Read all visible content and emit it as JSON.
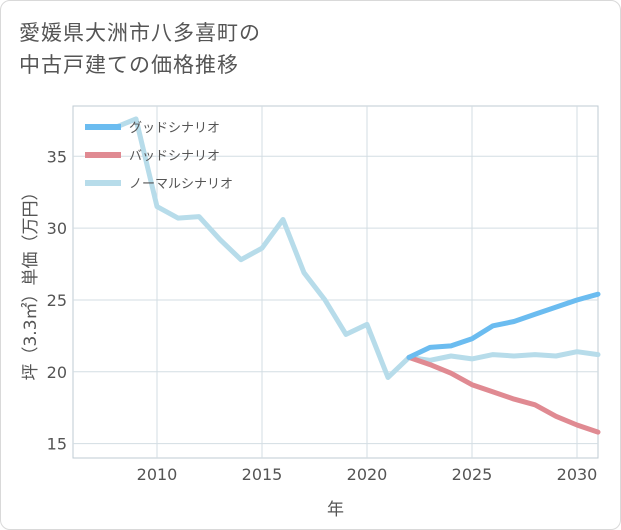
{
  "title_lines": [
    "愛媛県大洲市八多喜町の",
    "中古戸建ての価格推移"
  ],
  "chart_data": {
    "type": "line",
    "xlabel": "年",
    "ylabel": "坪（3.3㎡）単価（万円）",
    "xlim": [
      2006,
      2031
    ],
    "ylim": [
      14,
      38.5
    ],
    "xticks": [
      2010,
      2015,
      2020,
      2025,
      2030
    ],
    "yticks": [
      15,
      20,
      25,
      30,
      35
    ],
    "grid": true,
    "legend_position": "top-left",
    "series": [
      {
        "name": "グッドシナリオ",
        "color": "#6bbcf0",
        "x": [
          2022,
          2023,
          2024,
          2025,
          2026,
          2027,
          2028,
          2029,
          2030,
          2031
        ],
        "values": [
          21.0,
          21.7,
          21.8,
          22.3,
          23.2,
          23.5,
          24.0,
          24.5,
          25.0,
          25.4
        ]
      },
      {
        "name": "バッドシナリオ",
        "color": "#e08a92",
        "x": [
          2022,
          2023,
          2024,
          2025,
          2026,
          2027,
          2028,
          2029,
          2030,
          2031
        ],
        "values": [
          21.0,
          20.5,
          19.9,
          19.1,
          18.6,
          18.1,
          17.7,
          16.9,
          16.3,
          15.8
        ]
      },
      {
        "name": "ノーマルシナリオ",
        "color": "#b7dcea",
        "x": [
          2008,
          2009,
          2010,
          2011,
          2012,
          2013,
          2014,
          2015,
          2016,
          2017,
          2018,
          2019,
          2020,
          2021,
          2022,
          2023,
          2024,
          2025,
          2026,
          2027,
          2028,
          2029,
          2030,
          2031
        ],
        "values": [
          37.0,
          37.6,
          31.5,
          30.7,
          30.8,
          29.2,
          27.8,
          28.6,
          30.6,
          26.9,
          25.0,
          22.6,
          23.3,
          19.6,
          21.0,
          20.8,
          21.1,
          20.9,
          21.2,
          21.1,
          21.2,
          21.1,
          21.4,
          21.2
        ]
      }
    ]
  }
}
